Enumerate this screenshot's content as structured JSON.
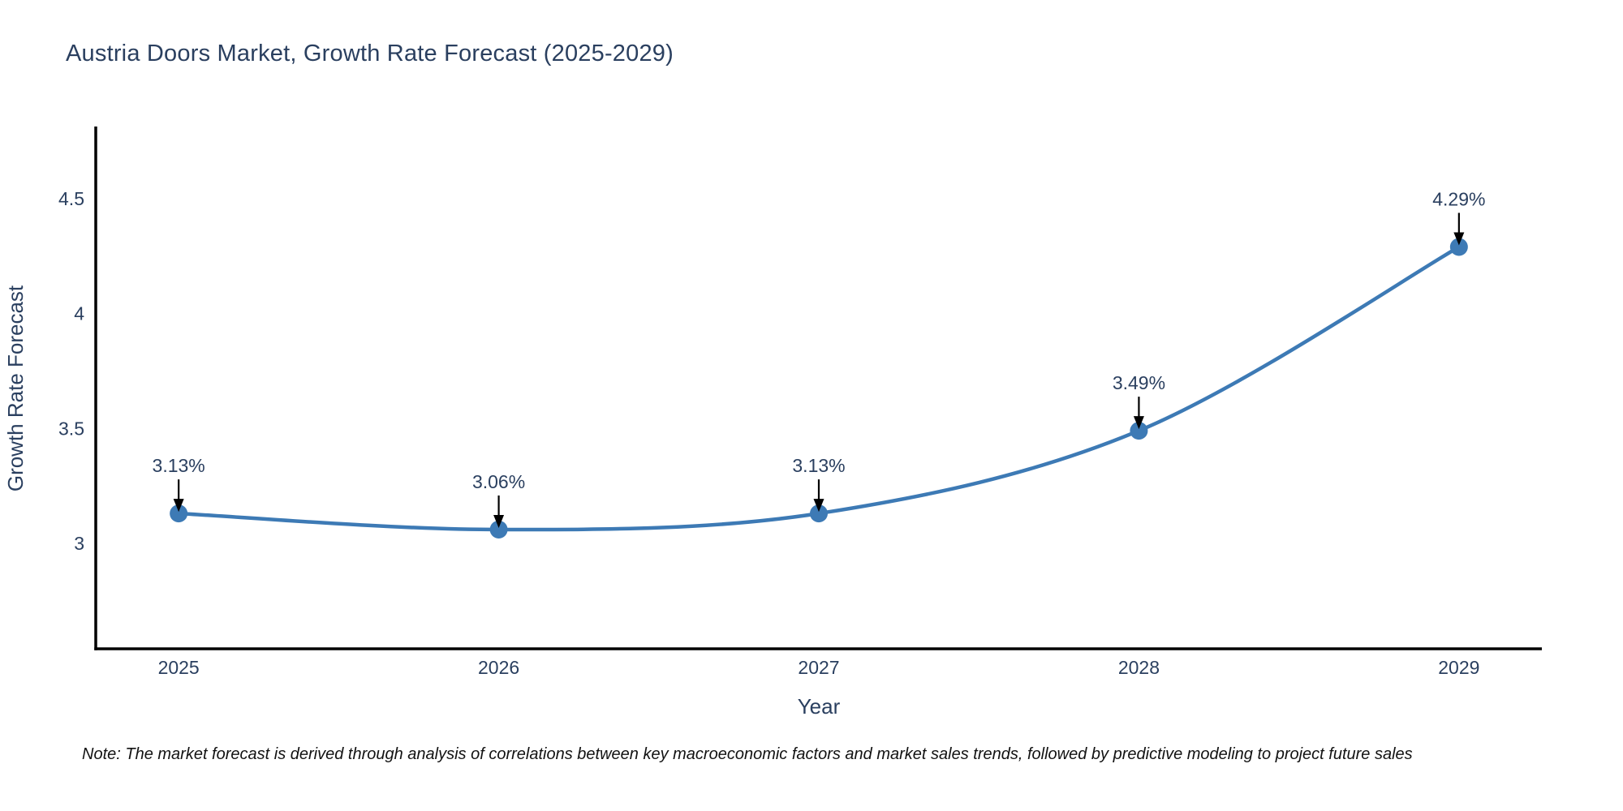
{
  "note": "Note: The market forecast is derived through analysis of correlations between key macroeconomic factors and market sales trends, followed by predictive modeling to project future sales",
  "chart_data": {
    "type": "line",
    "title": "Austria Doors Market, Growth Rate Forecast (2025-2029)",
    "xlabel": "Year",
    "ylabel": "Growth Rate Forecast",
    "x": [
      2025,
      2026,
      2027,
      2028,
      2029
    ],
    "values": [
      3.13,
      3.06,
      3.13,
      3.49,
      4.29
    ],
    "point_labels": [
      "3.13%",
      "3.06%",
      "3.13%",
      "3.49%",
      "4.29%"
    ],
    "xtick_labels": [
      "2025",
      "2026",
      "2027",
      "2028",
      "2029"
    ],
    "ytick_values": [
      3,
      3.5,
      4,
      4.5
    ],
    "ytick_labels": [
      "3",
      "3.5",
      "4",
      "4.5"
    ],
    "xlim": [
      2024.741,
      2029.259
    ],
    "ylim": [
      2.541,
      4.807
    ],
    "grid": false,
    "legend": false,
    "line_shape": "spline",
    "annotation_arrows": true,
    "colors": {
      "series": "#3d7ab5",
      "axis": "#000000",
      "text": "#2a3f5f",
      "annotation": "#000000",
      "background": "#ffffff"
    }
  }
}
